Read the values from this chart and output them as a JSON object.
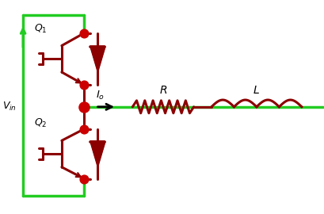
{
  "bg_color": "#ffffff",
  "green_color": "#22cc22",
  "dark_red": "#8b0000",
  "red_dot": "#cc0000",
  "black": "#000000",
  "line_width": 2.2,
  "dot_size": 60,
  "fig_width": 4.1,
  "fig_height": 2.7,
  "dpi": 100
}
